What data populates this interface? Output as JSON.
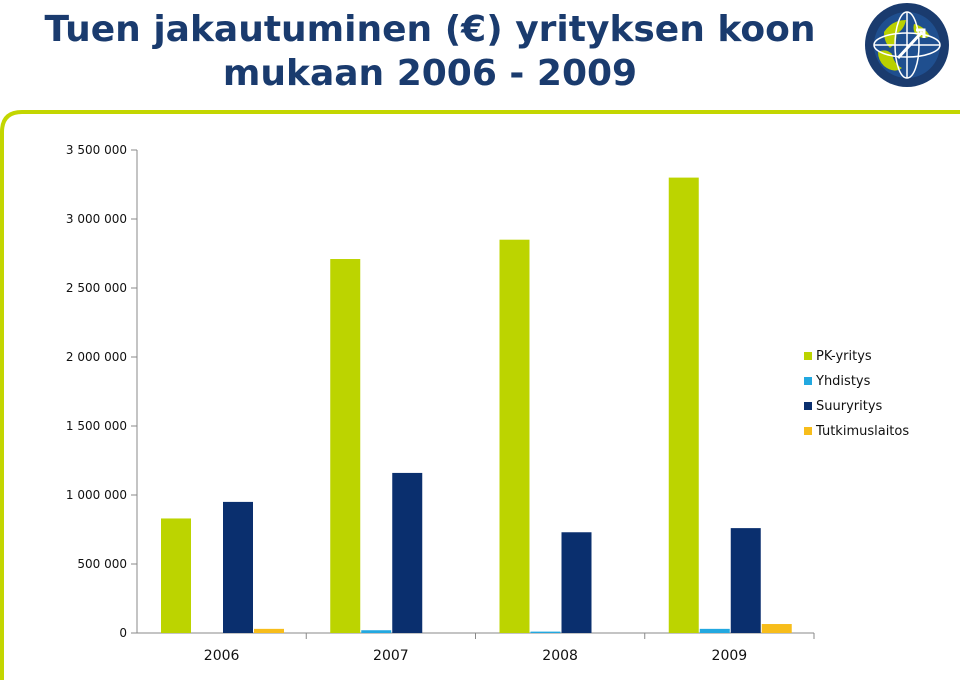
{
  "header": {
    "title_line1": "Tuen jakautuminen (€) yrityksen koon",
    "title_line2": "mukaan 2006 - 2009"
  },
  "logo": {
    "icon": "globe-logo-icon",
    "colors": {
      "ring": "#1a3b6e",
      "land": "#b9d000",
      "grid": "#ffffff"
    }
  },
  "colors": {
    "accent_frame": "#c3d600"
  },
  "chart_data": {
    "type": "bar",
    "title": "",
    "xlabel": "",
    "ylabel": "",
    "categories": [
      "2006",
      "2007",
      "2008",
      "2009"
    ],
    "ylim": [
      0,
      3500000
    ],
    "yticks": [
      0,
      500000,
      1000000,
      1500000,
      2000000,
      2500000,
      3000000,
      3500000
    ],
    "ytick_labels": [
      "0",
      "500 000",
      "1 000 000",
      "1 500 000",
      "2 000 000",
      "2 500 000",
      "3 000 000",
      "3 500 000"
    ],
    "grid": false,
    "legend_position": "right",
    "series": [
      {
        "name": "PK-yritys",
        "color": "#bcd400",
        "values": [
          830000,
          2710000,
          2850000,
          3300000
        ]
      },
      {
        "name": "Yhdistys",
        "color": "#22a8e0",
        "values": [
          0,
          20000,
          10000,
          30000
        ]
      },
      {
        "name": "Suuryritys",
        "color": "#0a2f6e",
        "values": [
          950000,
          1160000,
          730000,
          760000
        ]
      },
      {
        "name": "Tutkimuslaitos",
        "color": "#f7bd1b",
        "values": [
          30000,
          0,
          0,
          65000
        ]
      }
    ]
  }
}
